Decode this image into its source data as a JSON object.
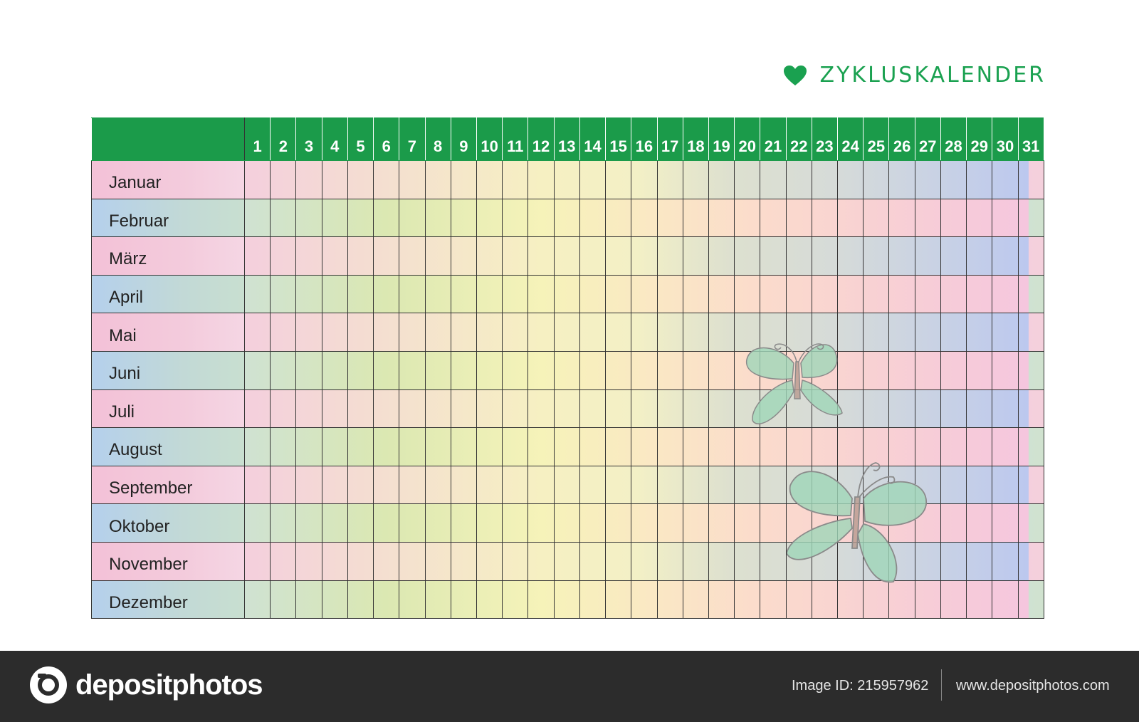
{
  "title": {
    "text": "ZYKLUSKALENDER",
    "icon": "heart-icon",
    "color": "#1aa150"
  },
  "calendar": {
    "header_color": "#1b9b4a",
    "days": [
      "1",
      "2",
      "3",
      "4",
      "5",
      "6",
      "7",
      "8",
      "9",
      "10",
      "11",
      "12",
      "13",
      "14",
      "15",
      "16",
      "17",
      "18",
      "19",
      "20",
      "21",
      "22",
      "23",
      "24",
      "25",
      "26",
      "27",
      "28",
      "29",
      "30",
      "31"
    ],
    "months": [
      "Januar",
      "Februar",
      "März",
      "April",
      "Mai",
      "Juni",
      "Juli",
      "August",
      "September",
      "Oktober",
      "November",
      "Dezember"
    ]
  },
  "footer": {
    "logo_text": "depositphotos",
    "image_id": "Image ID: 215957962",
    "site": "www.depositphotos.com"
  }
}
